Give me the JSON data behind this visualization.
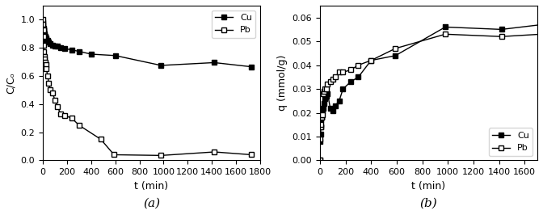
{
  "plot_a": {
    "Cu_t": [
      0,
      2,
      4,
      6,
      8,
      10,
      12,
      15,
      20,
      25,
      30,
      40,
      50,
      60,
      80,
      100,
      120,
      150,
      180,
      240,
      300,
      400,
      600,
      980,
      1420,
      1730
    ],
    "Cu_C": [
      0.98,
      0.96,
      0.94,
      0.93,
      0.92,
      0.91,
      0.9,
      0.89,
      0.88,
      0.87,
      0.86,
      0.85,
      0.84,
      0.83,
      0.82,
      0.81,
      0.81,
      0.8,
      0.795,
      0.785,
      0.775,
      0.755,
      0.745,
      0.675,
      0.695,
      0.665
    ],
    "Pb_t": [
      0,
      2,
      4,
      6,
      8,
      10,
      12,
      15,
      20,
      25,
      30,
      40,
      50,
      60,
      80,
      100,
      120,
      150,
      180,
      240,
      300,
      480,
      590,
      980,
      1420,
      1730
    ],
    "Pb_C": [
      1.0,
      0.97,
      0.93,
      0.88,
      0.82,
      0.77,
      0.74,
      0.72,
      0.7,
      0.68,
      0.65,
      0.6,
      0.55,
      0.5,
      0.48,
      0.43,
      0.38,
      0.33,
      0.32,
      0.3,
      0.25,
      0.15,
      0.04,
      0.035,
      0.06,
      0.04
    ],
    "xlabel": "t (min)",
    "ylabel": "C/Cₒ",
    "label_a": "(a)",
    "xlim": [
      0,
      1800
    ],
    "ylim": [
      0,
      1.1
    ],
    "xticks": [
      0,
      200,
      400,
      600,
      800,
      1000,
      1200,
      1400,
      1600,
      1800
    ],
    "yticks": [
      0.0,
      0.2,
      0.4,
      0.6,
      0.8,
      1.0
    ]
  },
  "plot_b": {
    "Cu_t": [
      0,
      2,
      4,
      6,
      8,
      10,
      12,
      15,
      20,
      25,
      30,
      40,
      50,
      60,
      80,
      100,
      120,
      150,
      180,
      240,
      300,
      400,
      590,
      980,
      1420,
      1730
    ],
    "Cu_q": [
      0.0,
      0.008,
      0.011,
      0.014,
      0.017,
      0.018,
      0.019,
      0.02,
      0.021,
      0.022,
      0.024,
      0.026,
      0.027,
      0.028,
      0.022,
      0.021,
      0.023,
      0.025,
      0.03,
      0.033,
      0.035,
      0.042,
      0.044,
      0.056,
      0.055,
      0.057
    ],
    "Pb_t": [
      0,
      2,
      4,
      6,
      8,
      10,
      12,
      15,
      20,
      25,
      30,
      40,
      50,
      60,
      80,
      100,
      120,
      150,
      180,
      240,
      300,
      400,
      590,
      980,
      1420,
      1730
    ],
    "Pb_q": [
      0.0,
      0.009,
      0.014,
      0.018,
      0.015,
      0.018,
      0.018,
      0.019,
      0.019,
      0.028,
      0.029,
      0.03,
      0.03,
      0.032,
      0.033,
      0.034,
      0.035,
      0.037,
      0.037,
      0.038,
      0.04,
      0.042,
      0.047,
      0.053,
      0.052,
      0.053
    ],
    "xlabel": "t (min)",
    "ylabel": "q (mmol/g)",
    "label_b": "(b)",
    "xlim": [
      0,
      1700
    ],
    "ylim": [
      0.0,
      0.065
    ],
    "xticks": [
      0,
      200,
      400,
      600,
      800,
      1000,
      1200,
      1400,
      1600
    ],
    "yticks": [
      0.0,
      0.01,
      0.02,
      0.03,
      0.04,
      0.05,
      0.06
    ]
  },
  "color": "#000000",
  "marker_Cu": "s",
  "marker_Pb": "s",
  "markersize": 4,
  "linewidth": 1.0,
  "fontsize_label": 9,
  "fontsize_tick": 8,
  "fontsize_legend": 8,
  "fontsize_sublabel": 11
}
